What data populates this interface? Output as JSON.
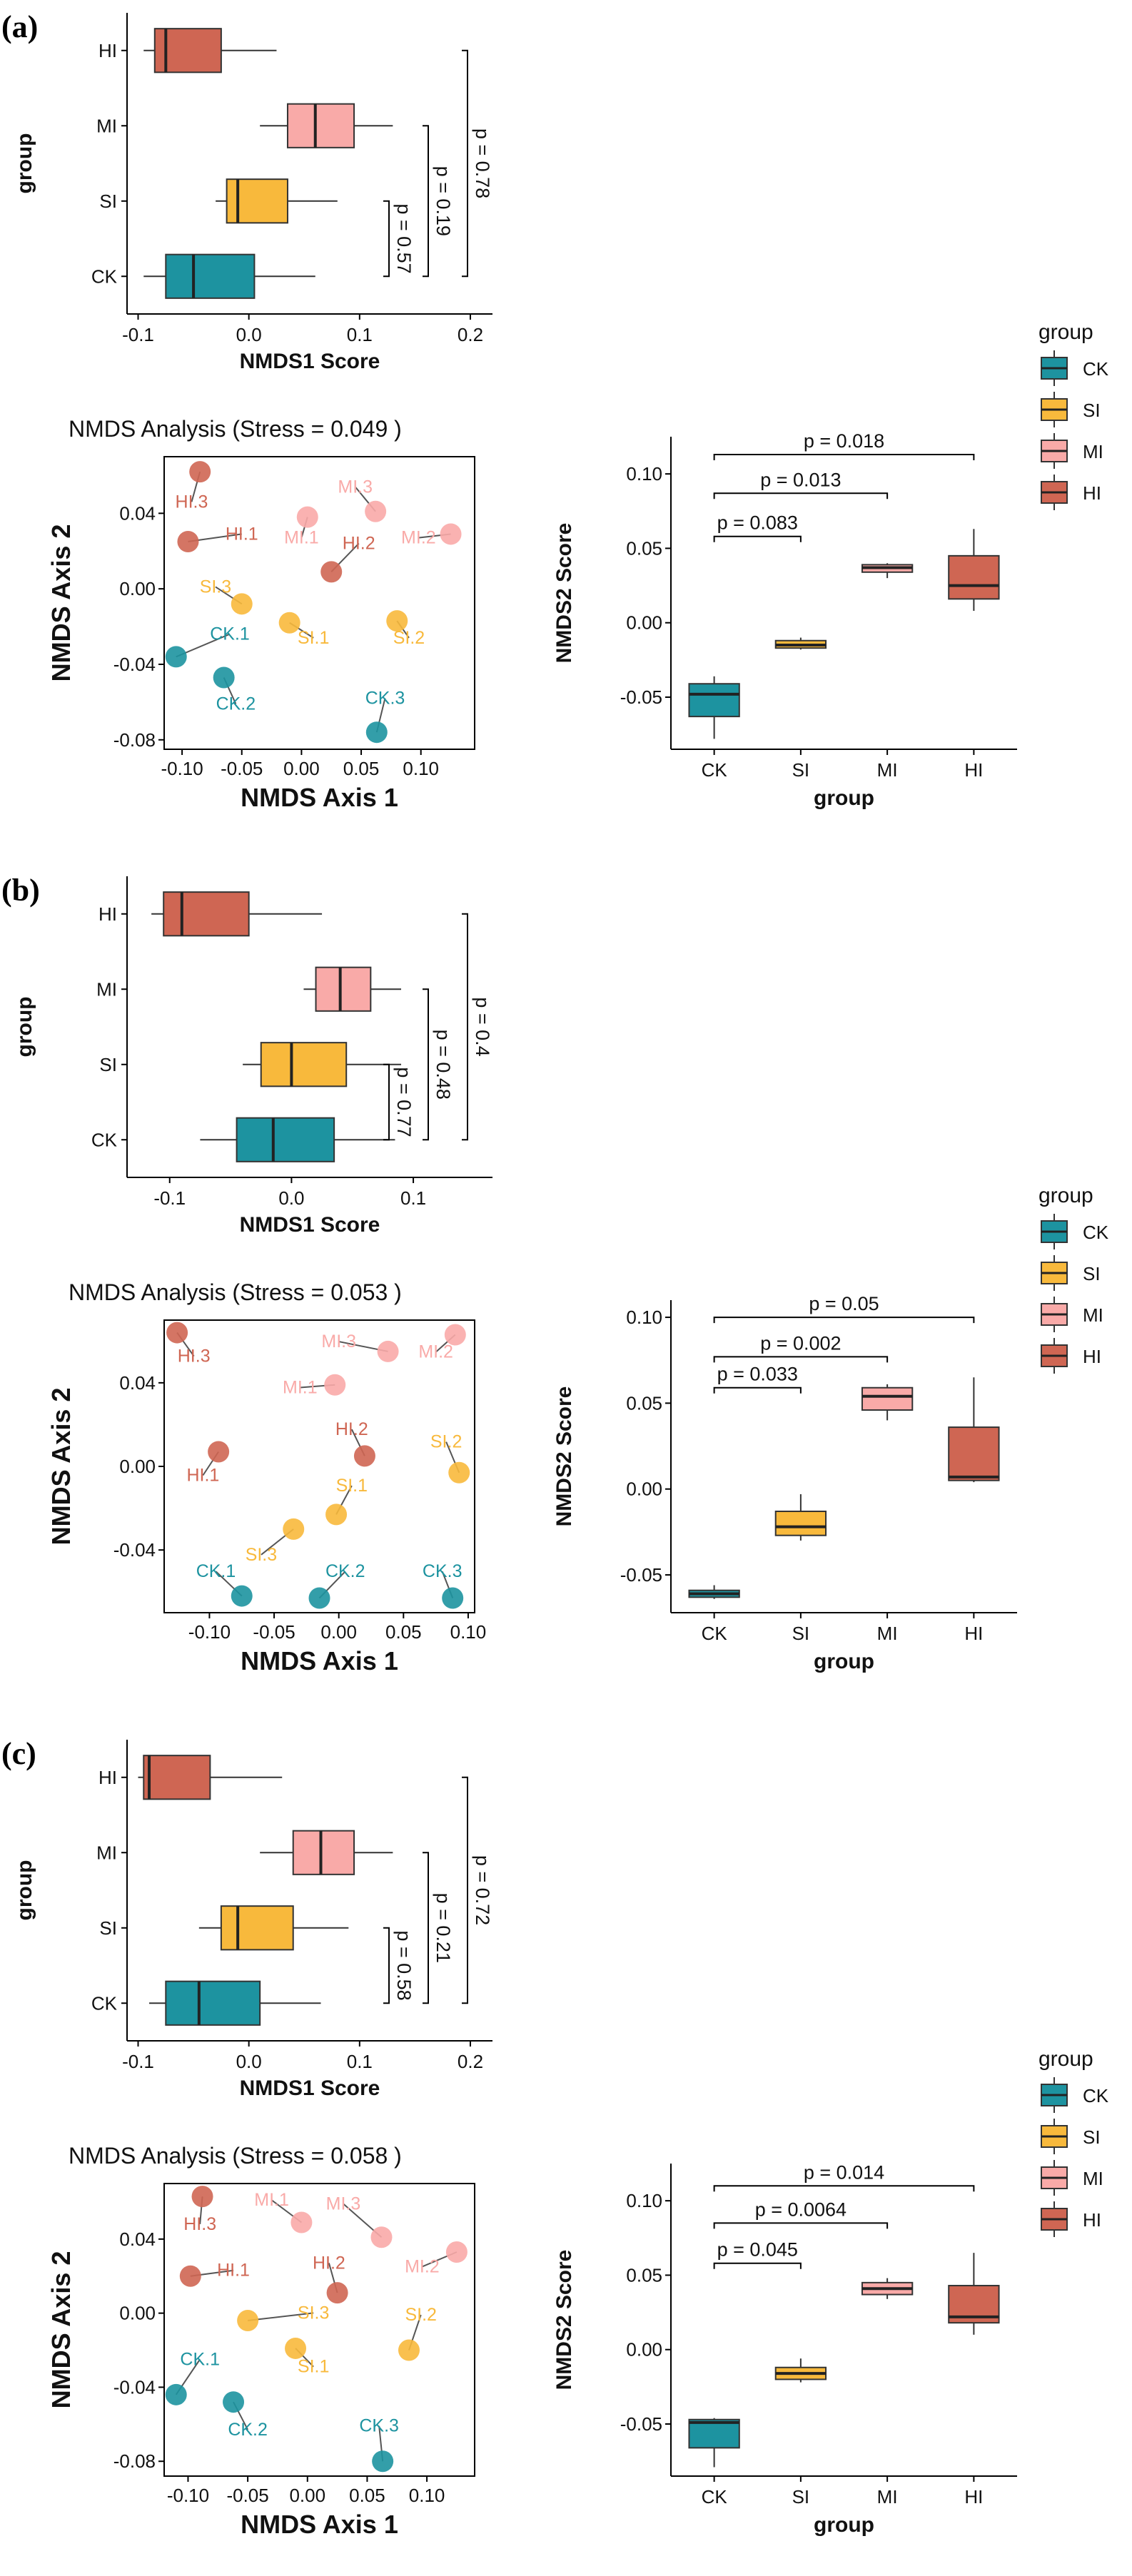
{
  "colors": {
    "CK": "#1d93a0",
    "SI": "#f8b93c",
    "MI": "#f9aaa8",
    "HI": "#cf6653"
  },
  "groups": [
    "CK",
    "SI",
    "MI",
    "HI"
  ],
  "legend": {
    "title": "group",
    "entries": [
      "CK",
      "SI",
      "MI",
      "HI"
    ]
  },
  "chart_data": [
    {
      "panel": "(a)",
      "nmds1": {
        "type": "boxplot",
        "orientation": "horizontal",
        "xlabel": "NMDS1 Score",
        "ylabel": "group",
        "xlim": [
          -0.11,
          0.22
        ],
        "xticks": [
          -0.1,
          0.0,
          0.1,
          0.2
        ],
        "xtick_labels": [
          "-0.1",
          "0.0",
          "0.1",
          "0.2"
        ],
        "categories": [
          "CK",
          "SI",
          "MI",
          "HI"
        ],
        "boxes": [
          {
            "group": "CK",
            "min": -0.095,
            "q1": -0.075,
            "median": -0.05,
            "q3": 0.005,
            "max": 0.06
          },
          {
            "group": "SI",
            "min": -0.03,
            "q1": -0.02,
            "median": -0.01,
            "q3": 0.035,
            "max": 0.08
          },
          {
            "group": "MI",
            "min": 0.01,
            "q1": 0.035,
            "median": 0.06,
            "q3": 0.095,
            "max": 0.13
          },
          {
            "group": "HI",
            "min": -0.095,
            "q1": -0.085,
            "median": -0.075,
            "q3": -0.025,
            "max": 0.025
          }
        ],
        "pvalues": [
          {
            "text": "p = 0.57",
            "from": "CK",
            "to": "SI"
          },
          {
            "text": "p = 0.19",
            "from": "CK",
            "to": "MI"
          },
          {
            "text": "p = 0.78",
            "from": "CK",
            "to": "HI"
          }
        ]
      },
      "nmds_scatter": {
        "type": "scatter",
        "title": "NMDS Analysis (Stress = 0.049 )",
        "xlabel": "NMDS Axis 1",
        "ylabel": "NMDS Axis 2",
        "xlim": [
          -0.115,
          0.145
        ],
        "ylim": [
          -0.085,
          0.07
        ],
        "xticks": [
          -0.1,
          -0.05,
          0.0,
          0.05,
          0.1
        ],
        "xtick_labels": [
          "-0.10",
          "-0.05",
          "0.00",
          "0.05",
          "0.10"
        ],
        "yticks": [
          -0.08,
          -0.04,
          0.0,
          0.04
        ],
        "ytick_labels": [
          "-0.08",
          "-0.04",
          "0.00",
          "0.04"
        ],
        "points": [
          {
            "label": "CK.1",
            "group": "CK",
            "x": -0.105,
            "y": -0.036,
            "lx": -0.06,
            "ly": -0.027
          },
          {
            "label": "CK.2",
            "group": "CK",
            "x": -0.065,
            "y": -0.047,
            "lx": -0.055,
            "ly": -0.064
          },
          {
            "label": "CK.3",
            "group": "CK",
            "x": 0.063,
            "y": -0.076,
            "lx": 0.07,
            "ly": -0.061
          },
          {
            "label": "SI.1",
            "group": "SI",
            "x": -0.01,
            "y": -0.018,
            "lx": 0.01,
            "ly": -0.029
          },
          {
            "label": "SI.2",
            "group": "SI",
            "x": 0.08,
            "y": -0.017,
            "lx": 0.09,
            "ly": -0.029
          },
          {
            "label": "SI.3",
            "group": "SI",
            "x": -0.05,
            "y": -0.008,
            "lx": -0.072,
            "ly": -0.002
          },
          {
            "label": "MI.1",
            "group": "MI",
            "x": 0.005,
            "y": 0.038,
            "lx": 0.0,
            "ly": 0.024
          },
          {
            "label": "MI.2",
            "group": "MI",
            "x": 0.125,
            "y": 0.029,
            "lx": 0.098,
            "ly": 0.024
          },
          {
            "label": "MI.3",
            "group": "MI",
            "x": 0.062,
            "y": 0.041,
            "lx": 0.045,
            "ly": 0.051
          },
          {
            "label": "HI.1",
            "group": "HI",
            "x": -0.095,
            "y": 0.025,
            "lx": -0.05,
            "ly": 0.026
          },
          {
            "label": "HI.2",
            "group": "HI",
            "x": 0.025,
            "y": 0.009,
            "lx": 0.048,
            "ly": 0.021
          },
          {
            "label": "HI.3",
            "group": "HI",
            "x": -0.085,
            "y": 0.062,
            "lx": -0.092,
            "ly": 0.043
          }
        ]
      },
      "nmds2": {
        "type": "boxplot",
        "orientation": "vertical",
        "xlabel": "group",
        "ylabel": "NMDS2 Score",
        "ylim": [
          -0.085,
          0.125
        ],
        "yticks": [
          -0.05,
          0.0,
          0.05,
          0.1
        ],
        "ytick_labels": [
          "-0.05",
          "0.00",
          "0.05",
          "0.10"
        ],
        "categories": [
          "CK",
          "SI",
          "MI",
          "HI"
        ],
        "boxes": [
          {
            "group": "CK",
            "min": -0.078,
            "q1": -0.063,
            "median": -0.048,
            "q3": -0.041,
            "max": -0.036
          },
          {
            "group": "SI",
            "min": -0.018,
            "q1": -0.017,
            "median": -0.015,
            "q3": -0.012,
            "max": -0.01
          },
          {
            "group": "MI",
            "min": 0.03,
            "q1": 0.034,
            "median": 0.037,
            "q3": 0.039,
            "max": 0.04
          },
          {
            "group": "HI",
            "min": 0.008,
            "q1": 0.016,
            "median": 0.025,
            "q3": 0.045,
            "max": 0.063
          }
        ],
        "pvalues": [
          {
            "text": "p = 0.083",
            "from": "CK",
            "to": "SI",
            "level": 0.058
          },
          {
            "text": "p = 0.013",
            "from": "CK",
            "to": "MI",
            "level": 0.087
          },
          {
            "text": "p = 0.018",
            "from": "CK",
            "to": "HI",
            "level": 0.113
          }
        ]
      }
    },
    {
      "panel": "(b)",
      "nmds1": {
        "type": "boxplot",
        "orientation": "horizontal",
        "xlabel": "NMDS1 Score",
        "ylabel": "group",
        "xlim": [
          -0.135,
          0.165
        ],
        "xticks": [
          -0.1,
          0.0,
          0.1
        ],
        "xtick_labels": [
          "-0.1",
          "0.0",
          "0.1"
        ],
        "categories": [
          "CK",
          "SI",
          "MI",
          "HI"
        ],
        "boxes": [
          {
            "group": "CK",
            "min": -0.075,
            "q1": -0.045,
            "median": -0.015,
            "q3": 0.035,
            "max": 0.085
          },
          {
            "group": "SI",
            "min": -0.04,
            "q1": -0.025,
            "median": 0.0,
            "q3": 0.045,
            "max": 0.09
          },
          {
            "group": "MI",
            "min": 0.01,
            "q1": 0.02,
            "median": 0.04,
            "q3": 0.065,
            "max": 0.09
          },
          {
            "group": "HI",
            "min": -0.115,
            "q1": -0.105,
            "median": -0.09,
            "q3": -0.035,
            "max": 0.025
          }
        ],
        "pvalues": [
          {
            "text": "p = 0.77",
            "from": "CK",
            "to": "SI"
          },
          {
            "text": "p = 0.48",
            "from": "CK",
            "to": "MI"
          },
          {
            "text": "p = 0.4",
            "from": "CK",
            "to": "HI"
          }
        ]
      },
      "nmds_scatter": {
        "type": "scatter",
        "title": "NMDS Analysis (Stress = 0.053 )",
        "xlabel": "NMDS Axis 1",
        "ylabel": "NMDS Axis 2",
        "xlim": [
          -0.135,
          0.105
        ],
        "ylim": [
          -0.07,
          0.07
        ],
        "xticks": [
          -0.1,
          -0.05,
          0.0,
          0.05,
          0.1
        ],
        "xtick_labels": [
          "-0.10",
          "-0.05",
          "0.00",
          "0.05",
          "0.10"
        ],
        "yticks": [
          -0.04,
          0.0,
          0.04
        ],
        "ytick_labels": [
          "-0.04",
          "0.00",
          "0.04"
        ],
        "points": [
          {
            "label": "CK.1",
            "group": "CK",
            "x": -0.075,
            "y": -0.062,
            "lx": -0.095,
            "ly": -0.053
          },
          {
            "label": "CK.2",
            "group": "CK",
            "x": -0.015,
            "y": -0.063,
            "lx": 0.005,
            "ly": -0.053
          },
          {
            "label": "CK.3",
            "group": "CK",
            "x": 0.088,
            "y": -0.063,
            "lx": 0.08,
            "ly": -0.053
          },
          {
            "label": "SI.1",
            "group": "SI",
            "x": -0.002,
            "y": -0.023,
            "lx": 0.01,
            "ly": -0.012
          },
          {
            "label": "SI.2",
            "group": "SI",
            "x": 0.093,
            "y": -0.003,
            "lx": 0.083,
            "ly": 0.009
          },
          {
            "label": "SI.3",
            "group": "SI",
            "x": -0.035,
            "y": -0.03,
            "lx": -0.06,
            "ly": -0.045
          },
          {
            "label": "MI.1",
            "group": "MI",
            "x": -0.003,
            "y": 0.039,
            "lx": -0.03,
            "ly": 0.035
          },
          {
            "label": "MI.2",
            "group": "MI",
            "x": 0.09,
            "y": 0.063,
            "lx": 0.075,
            "ly": 0.052
          },
          {
            "label": "MI.3",
            "group": "MI",
            "x": 0.038,
            "y": 0.055,
            "lx": 0.0,
            "ly": 0.057
          },
          {
            "label": "HI.1",
            "group": "HI",
            "x": -0.093,
            "y": 0.007,
            "lx": -0.105,
            "ly": -0.007
          },
          {
            "label": "HI.2",
            "group": "HI",
            "x": 0.02,
            "y": 0.005,
            "lx": 0.01,
            "ly": 0.015
          },
          {
            "label": "HI.3",
            "group": "HI",
            "x": -0.125,
            "y": 0.064,
            "lx": -0.112,
            "ly": 0.05
          }
        ]
      },
      "nmds2": {
        "type": "boxplot",
        "orientation": "vertical",
        "xlabel": "group",
        "ylabel": "NMDS2 Score",
        "ylim": [
          -0.072,
          0.11
        ],
        "yticks": [
          -0.05,
          0.0,
          0.05,
          0.1
        ],
        "ytick_labels": [
          "-0.05",
          "0.00",
          "0.05",
          "0.10"
        ],
        "categories": [
          "CK",
          "SI",
          "MI",
          "HI"
        ],
        "boxes": [
          {
            "group": "CK",
            "min": -0.064,
            "q1": -0.063,
            "median": -0.061,
            "q3": -0.059,
            "max": -0.056
          },
          {
            "group": "SI",
            "min": -0.03,
            "q1": -0.027,
            "median": -0.022,
            "q3": -0.013,
            "max": -0.003
          },
          {
            "group": "MI",
            "min": 0.04,
            "q1": 0.046,
            "median": 0.054,
            "q3": 0.059,
            "max": 0.061
          },
          {
            "group": "HI",
            "min": 0.004,
            "q1": 0.005,
            "median": 0.007,
            "q3": 0.036,
            "max": 0.065
          }
        ],
        "pvalues": [
          {
            "text": "p = 0.033",
            "from": "CK",
            "to": "SI",
            "level": 0.059
          },
          {
            "text": "p = 0.002",
            "from": "CK",
            "to": "MI",
            "level": 0.077
          },
          {
            "text": "p = 0.05",
            "from": "CK",
            "to": "HI",
            "level": 0.1
          }
        ]
      }
    },
    {
      "panel": "(c)",
      "nmds1": {
        "type": "boxplot",
        "orientation": "horizontal",
        "xlabel": "NMDS1 Score",
        "ylabel": "group",
        "xlim": [
          -0.11,
          0.22
        ],
        "xticks": [
          -0.1,
          0.0,
          0.1,
          0.2
        ],
        "xtick_labels": [
          "-0.1",
          "0.0",
          "0.1",
          "0.2"
        ],
        "categories": [
          "CK",
          "SI",
          "MI",
          "HI"
        ],
        "boxes": [
          {
            "group": "CK",
            "min": -0.09,
            "q1": -0.075,
            "median": -0.045,
            "q3": 0.01,
            "max": 0.065
          },
          {
            "group": "SI",
            "min": -0.045,
            "q1": -0.025,
            "median": -0.01,
            "q3": 0.04,
            "max": 0.09
          },
          {
            "group": "MI",
            "min": 0.01,
            "q1": 0.04,
            "median": 0.065,
            "q3": 0.095,
            "max": 0.13
          },
          {
            "group": "HI",
            "min": -0.1,
            "q1": -0.095,
            "median": -0.09,
            "q3": -0.035,
            "max": 0.03
          }
        ],
        "pvalues": [
          {
            "text": "p = 0.58",
            "from": "CK",
            "to": "SI"
          },
          {
            "text": "p = 0.21",
            "from": "CK",
            "to": "MI"
          },
          {
            "text": "p = 0.72",
            "from": "CK",
            "to": "HI"
          }
        ]
      },
      "nmds_scatter": {
        "type": "scatter",
        "title": "NMDS Analysis (Stress = 0.058 )",
        "xlabel": "NMDS Axis 1",
        "ylabel": "NMDS Axis 2",
        "xlim": [
          -0.12,
          0.14
        ],
        "ylim": [
          -0.088,
          0.07
        ],
        "xticks": [
          -0.1,
          -0.05,
          0.0,
          0.05,
          0.1
        ],
        "xtick_labels": [
          "-0.10",
          "-0.05",
          "0.00",
          "0.05",
          "0.10"
        ],
        "yticks": [
          -0.08,
          -0.04,
          0.0,
          0.04
        ],
        "ytick_labels": [
          "-0.08",
          "-0.04",
          "0.00",
          "0.04"
        ],
        "points": [
          {
            "label": "CK.1",
            "group": "CK",
            "x": -0.11,
            "y": -0.044,
            "lx": -0.09,
            "ly": -0.028
          },
          {
            "label": "CK.2",
            "group": "CK",
            "x": -0.062,
            "y": -0.048,
            "lx": -0.05,
            "ly": -0.066
          },
          {
            "label": "CK.3",
            "group": "CK",
            "x": 0.063,
            "y": -0.08,
            "lx": 0.06,
            "ly": -0.064
          },
          {
            "label": "SI.1",
            "group": "SI",
            "x": -0.01,
            "y": -0.019,
            "lx": 0.005,
            "ly": -0.032
          },
          {
            "label": "SI.2",
            "group": "SI",
            "x": 0.085,
            "y": -0.02,
            "lx": 0.095,
            "ly": -0.004
          },
          {
            "label": "SI.3",
            "group": "SI",
            "x": -0.05,
            "y": -0.004,
            "lx": 0.005,
            "ly": -0.003
          },
          {
            "label": "MI.1",
            "group": "MI",
            "x": -0.005,
            "y": 0.049,
            "lx": -0.03,
            "ly": 0.058
          },
          {
            "label": "MI.2",
            "group": "MI",
            "x": 0.125,
            "y": 0.033,
            "lx": 0.096,
            "ly": 0.022
          },
          {
            "label": "MI.3",
            "group": "MI",
            "x": 0.062,
            "y": 0.041,
            "lx": 0.03,
            "ly": 0.056
          },
          {
            "label": "HI.1",
            "group": "HI",
            "x": -0.098,
            "y": 0.02,
            "lx": -0.062,
            "ly": 0.02
          },
          {
            "label": "HI.2",
            "group": "HI",
            "x": 0.025,
            "y": 0.011,
            "lx": 0.018,
            "ly": 0.024
          },
          {
            "label": "HI.3",
            "group": "HI",
            "x": -0.088,
            "y": 0.063,
            "lx": -0.09,
            "ly": 0.045
          }
        ]
      },
      "nmds2": {
        "type": "boxplot",
        "orientation": "vertical",
        "xlabel": "group",
        "ylabel": "NMDS2 Score",
        "ylim": [
          -0.085,
          0.125
        ],
        "yticks": [
          -0.05,
          0.0,
          0.05,
          0.1
        ],
        "ytick_labels": [
          "-0.05",
          "0.00",
          "0.05",
          "0.10"
        ],
        "categories": [
          "CK",
          "SI",
          "MI",
          "HI"
        ],
        "boxes": [
          {
            "group": "CK",
            "min": -0.079,
            "q1": -0.066,
            "median": -0.049,
            "q3": -0.047,
            "max": -0.046
          },
          {
            "group": "SI",
            "min": -0.022,
            "q1": -0.02,
            "median": -0.016,
            "q3": -0.012,
            "max": -0.006
          },
          {
            "group": "MI",
            "min": 0.034,
            "q1": 0.037,
            "median": 0.041,
            "q3": 0.045,
            "max": 0.048
          },
          {
            "group": "HI",
            "min": 0.01,
            "q1": 0.018,
            "median": 0.022,
            "q3": 0.043,
            "max": 0.065
          }
        ],
        "pvalues": [
          {
            "text": "p = 0.045",
            "from": "CK",
            "to": "SI",
            "level": 0.058
          },
          {
            "text": "p = 0.0064",
            "from": "CK",
            "to": "MI",
            "level": 0.085
          },
          {
            "text": "p = 0.014",
            "from": "CK",
            "to": "HI",
            "level": 0.11
          }
        ]
      }
    }
  ]
}
